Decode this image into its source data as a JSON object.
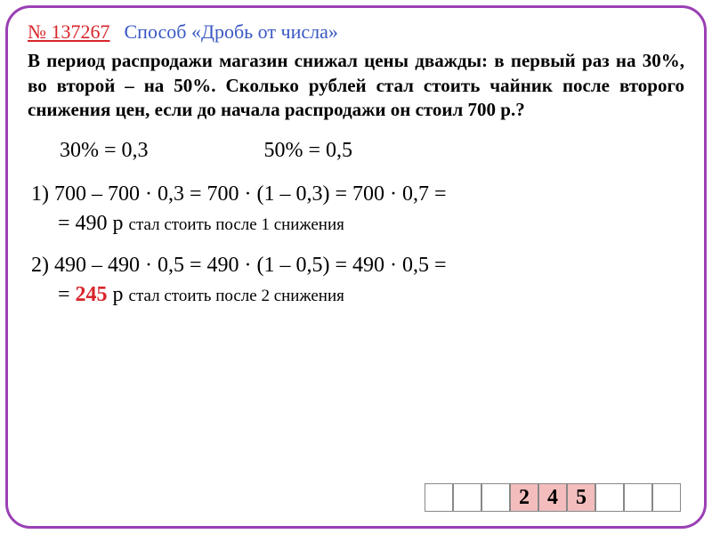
{
  "header": {
    "task_number": "№ 137267",
    "method_title": "Способ «Дробь от числа»"
  },
  "problem": "В период распродажи магазин снижал цены дважды: в первый раз на 30%, во второй – на 50%. Сколько рублей стал стоить чайник после второго снижения цен, если до начала распродажи он стоил 700 р.?",
  "conversions": {
    "c1": "30% = 0,3",
    "c2": "50% = 0,5"
  },
  "step1": {
    "line1": "1) 700 – 700 · 0,3 = 700 · (1 – 0,3) = 700 · 0,7 =",
    "result_prefix": "= ",
    "result_value": "490",
    "result_suffix": " р ",
    "note": "стал стоить после 1 снижения"
  },
  "step2": {
    "line1": "2) 490 – 490 · 0,5 = 490 · (1 – 0,5) = 490 · 0,5 =",
    "result_prefix": "= ",
    "result_value": "245",
    "result_suffix": " р ",
    "note": "стал стоить после 2 снижения"
  },
  "answer": {
    "cells": [
      "",
      "",
      "",
      "2",
      "4",
      "5",
      "",
      "",
      ""
    ]
  }
}
